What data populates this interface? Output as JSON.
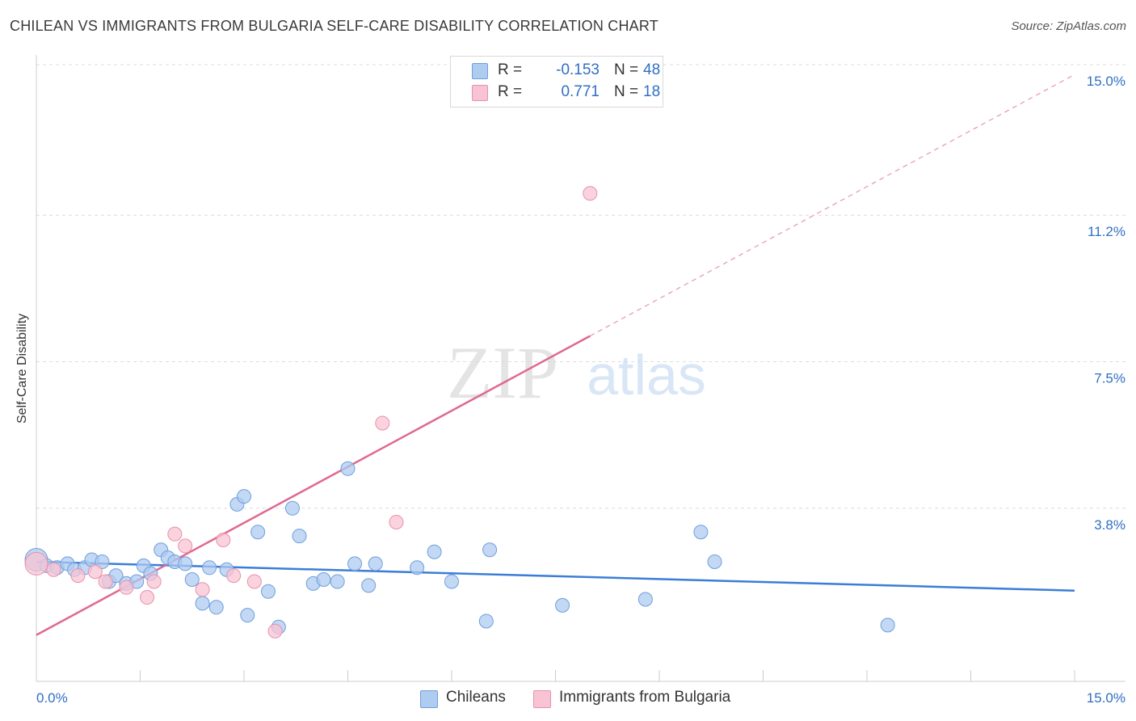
{
  "title": "CHILEAN VS IMMIGRANTS FROM BULGARIA SELF-CARE DISABILITY CORRELATION CHART",
  "source": "Source: ZipAtlas.com",
  "watermark": {
    "zip": "ZIP",
    "atlas": "atlas"
  },
  "legend": {
    "r_label": "R =",
    "n_label": "N =",
    "rows": [
      {
        "r": "-0.153",
        "n": "48",
        "color": "#aecbf0",
        "border": "#6f9fdc"
      },
      {
        "r": "0.771",
        "n": "18",
        "color": "#f8c4d4",
        "border": "#e890ab"
      }
    ]
  },
  "bottom_legend": [
    {
      "label": "Chileans",
      "color": "#aecbf0",
      "border": "#6f9fdc"
    },
    {
      "label": "Immigrants from Bulgaria",
      "color": "#f8c4d4",
      "border": "#e890ab"
    }
  ],
  "colors": {
    "blue": "#3b7dd8",
    "blue_fill": "#aecbf0",
    "pink": "#e0688f",
    "pink_fill": "#f8c4d4",
    "tick_text": "#2f6fc4"
  },
  "chart_data": {
    "type": "scatter",
    "title": "CHILEAN VS IMMIGRANTS FROM BULGARIA SELF-CARE DISABILITY CORRELATION CHART",
    "xlabel": "",
    "ylabel": "Self-Care Disability",
    "xlim": [
      0,
      15
    ],
    "ylim": [
      0,
      15
    ],
    "x_tick_labels": [
      "0.0%",
      "15.0%"
    ],
    "y_ticks": [
      3.8,
      7.5,
      11.2,
      15.0
    ],
    "y_tick_labels": [
      "3.8%",
      "7.5%",
      "11.2%",
      "15.0%"
    ],
    "grid": true,
    "legend_position": "top-center",
    "series": [
      {
        "name": "Chileans",
        "r": -0.153,
        "n": 48,
        "trend": {
          "x": [
            0,
            15
          ],
          "y": [
            2.45,
            1.72
          ]
        },
        "points": [
          [
            0.0,
            2.5
          ],
          [
            0.15,
            2.35
          ],
          [
            0.3,
            2.3
          ],
          [
            0.45,
            2.4
          ],
          [
            0.55,
            2.25
          ],
          [
            0.7,
            2.3
          ],
          [
            0.8,
            2.5
          ],
          [
            0.95,
            2.45
          ],
          [
            1.05,
            1.95
          ],
          [
            1.15,
            2.1
          ],
          [
            1.3,
            1.9
          ],
          [
            1.45,
            1.95
          ],
          [
            1.55,
            2.35
          ],
          [
            1.65,
            2.15
          ],
          [
            1.8,
            2.75
          ],
          [
            1.9,
            2.55
          ],
          [
            2.0,
            2.45
          ],
          [
            2.15,
            2.4
          ],
          [
            2.25,
            2.0
          ],
          [
            2.4,
            1.4
          ],
          [
            2.5,
            2.3
          ],
          [
            2.6,
            1.3
          ],
          [
            2.75,
            2.25
          ],
          [
            2.9,
            3.9
          ],
          [
            3.0,
            4.1
          ],
          [
            3.05,
            1.1
          ],
          [
            3.2,
            3.2
          ],
          [
            3.35,
            1.7
          ],
          [
            3.5,
            0.8
          ],
          [
            3.7,
            3.8
          ],
          [
            3.8,
            3.1
          ],
          [
            4.0,
            1.9
          ],
          [
            4.15,
            2.0
          ],
          [
            4.35,
            1.95
          ],
          [
            4.5,
            4.8
          ],
          [
            4.6,
            2.4
          ],
          [
            4.8,
            1.85
          ],
          [
            4.9,
            2.4
          ],
          [
            5.5,
            2.3
          ],
          [
            5.75,
            2.7
          ],
          [
            6.0,
            1.95
          ],
          [
            6.5,
            0.95
          ],
          [
            6.55,
            2.75
          ],
          [
            7.6,
            1.35
          ],
          [
            8.8,
            1.5
          ],
          [
            9.6,
            3.2
          ],
          [
            9.8,
            2.45
          ],
          [
            12.3,
            0.85
          ]
        ]
      },
      {
        "name": "Immigrants from Bulgaria",
        "r": 0.771,
        "n": 18,
        "trend": {
          "x": [
            0,
            8.0
          ],
          "y": [
            0.6,
            8.15
          ]
        },
        "trend_dashed": {
          "x": [
            8.0,
            15
          ],
          "y": [
            8.15,
            14.75
          ]
        },
        "points": [
          [
            0.0,
            2.4
          ],
          [
            0.25,
            2.25
          ],
          [
            0.6,
            2.1
          ],
          [
            0.85,
            2.2
          ],
          [
            1.0,
            1.95
          ],
          [
            1.3,
            1.8
          ],
          [
            1.6,
            1.55
          ],
          [
            1.7,
            1.95
          ],
          [
            2.0,
            3.15
          ],
          [
            2.15,
            2.85
          ],
          [
            2.4,
            1.75
          ],
          [
            2.7,
            3.0
          ],
          [
            2.85,
            2.1
          ],
          [
            3.15,
            1.95
          ],
          [
            3.45,
            0.7
          ],
          [
            5.0,
            5.95
          ],
          [
            5.2,
            3.45
          ],
          [
            8.0,
            11.75
          ]
        ]
      }
    ]
  }
}
